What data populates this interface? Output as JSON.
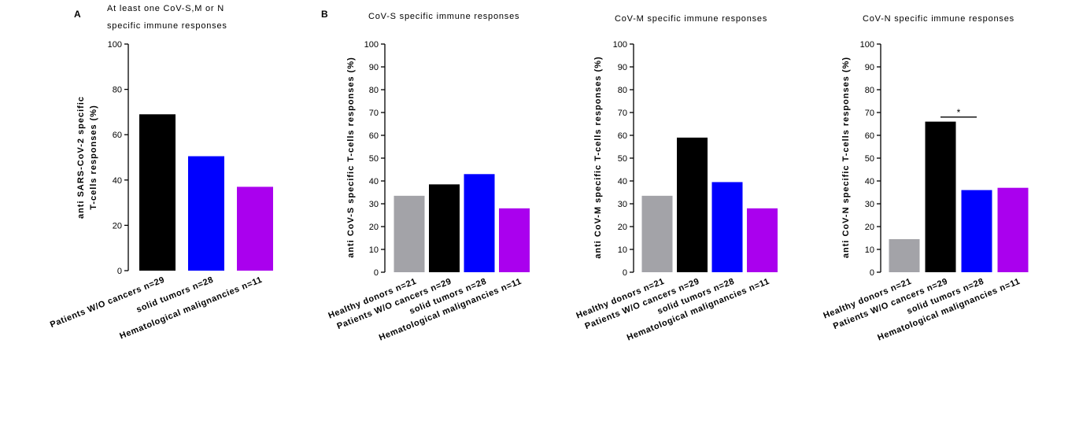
{
  "panel_labels": [
    "A",
    "B"
  ],
  "colors": {
    "healthy": "#a3a3a8",
    "wo_cancer": "#000000",
    "solid": "#0000ff",
    "hemato": "#aa00ee"
  },
  "chart_data": [
    {
      "type": "bar",
      "title_lines": [
        "At least one CoV-S,M or N",
        "specific immune responses"
      ],
      "ylabel_lines": [
        "anti SARS-CoV-2 specific",
        "T-cells responses (%)"
      ],
      "categories": [
        "Patients W/O cancers n=29",
        "solid tumors n=28",
        "Hematological malignancies n=11"
      ],
      "values": [
        69,
        50.5,
        37
      ],
      "bar_colors": [
        "#000000",
        "#0000ff",
        "#aa00ee"
      ],
      "ylim": [
        0,
        100
      ],
      "yticks": [
        0,
        20,
        40,
        60,
        80,
        100
      ],
      "grid": false
    },
    {
      "type": "bar",
      "title_lines": [
        "CoV-S specific immune responses"
      ],
      "ylabel_lines": [
        "anti CoV-S specific T-cells responses (%)"
      ],
      "categories": [
        "Healthy donors n=21",
        "Patients W/O cancers n=29",
        "solid tumors n=28",
        "Hematological malignancies n=11"
      ],
      "values": [
        33.5,
        38.5,
        43,
        28
      ],
      "bar_colors": [
        "#a3a3a8",
        "#000000",
        "#0000ff",
        "#aa00ee"
      ],
      "ylim": [
        0,
        100
      ],
      "yticks": [
        0,
        10,
        20,
        30,
        40,
        50,
        60,
        70,
        80,
        90,
        100
      ],
      "grid": false
    },
    {
      "type": "bar",
      "title_lines": [
        "CoV-M specific immune responses"
      ],
      "ylabel_lines": [
        "anti CoV-M specific T-cells responses (%)"
      ],
      "categories": [
        "Healthy donors n=21",
        "Patients W/O cancers n=29",
        "solid tumors n=28",
        "Hematological malignancies n=11"
      ],
      "values": [
        33.5,
        59,
        39.5,
        28
      ],
      "bar_colors": [
        "#a3a3a8",
        "#000000",
        "#0000ff",
        "#aa00ee"
      ],
      "ylim": [
        0,
        100
      ],
      "yticks": [
        0,
        10,
        20,
        30,
        40,
        50,
        60,
        70,
        80,
        90,
        100
      ],
      "grid": false
    },
    {
      "type": "bar",
      "title_lines": [
        "CoV-N specific immune responses"
      ],
      "ylabel_lines": [
        "anti CoV-N specific T-cells responses (%)"
      ],
      "categories": [
        "Healthy donors n=21",
        "Patients W/O cancers n=29",
        "solid tumors n=28",
        "Hematological malignancies n=11"
      ],
      "values": [
        14.5,
        66,
        36,
        37
      ],
      "bar_colors": [
        "#a3a3a8",
        "#000000",
        "#0000ff",
        "#aa00ee"
      ],
      "ylim": [
        0,
        100
      ],
      "yticks": [
        0,
        10,
        20,
        30,
        40,
        50,
        60,
        70,
        80,
        90,
        100
      ],
      "grid": false,
      "annotations": [
        {
          "text": "*",
          "from_category": 1,
          "to_category": 2,
          "y": 68
        }
      ]
    }
  ]
}
